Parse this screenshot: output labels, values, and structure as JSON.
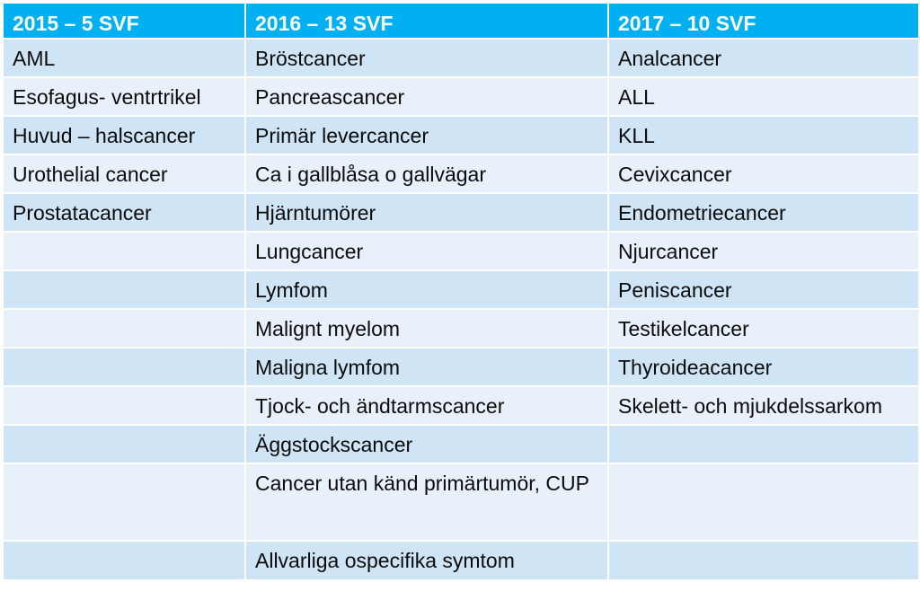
{
  "table": {
    "headers": [
      "2015 – 5 SVF",
      "2016 – 13 SVF",
      "2017 – 10 SVF"
    ],
    "rows": [
      [
        "AML",
        "Bröstcancer",
        "Analcancer"
      ],
      [
        "Esofagus- ventrtrikel",
        "Pancreascancer",
        "ALL"
      ],
      [
        "Huvud – halscancer",
        "Primär levercancer",
        "KLL"
      ],
      [
        "Urothelial cancer",
        "Ca i gallblåsa o gallvägar",
        "Cevixcancer"
      ],
      [
        "Prostatacancer",
        "Hjärntumörer",
        "Endometriecancer"
      ],
      [
        "",
        "Lungcancer",
        "Njurcancer"
      ],
      [
        "",
        "Lymfom",
        "Peniscancer"
      ],
      [
        "",
        "Malignt myelom",
        "Testikelcancer"
      ],
      [
        "",
        "Maligna lymfom",
        "Thyroideacancer"
      ],
      [
        "",
        "Tjock- och ändtarmscancer",
        "Skelett- och mjukdelssarkom"
      ],
      [
        "",
        "Äggstockscancer",
        ""
      ],
      [
        "",
        "Cancer utan känd primärtumör, CUP",
        ""
      ],
      [
        "",
        "Allvarliga ospecifika symtom",
        ""
      ]
    ]
  },
  "colors": {
    "header": "#00b0f0",
    "row_dark": "#cfe5f6",
    "row_light": "#e8f1fa"
  }
}
